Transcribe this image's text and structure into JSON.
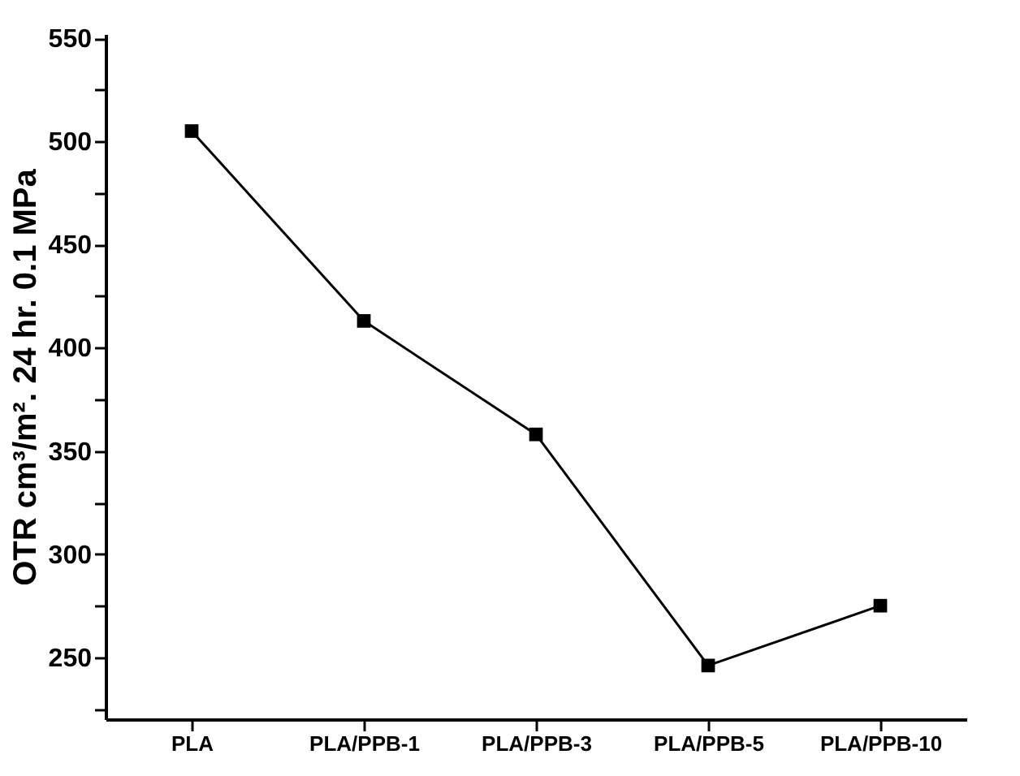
{
  "chart_data": {
    "type": "line",
    "ylabel": "OTR cm³/m². 24 hr. 0.1 MPa",
    "categories": [
      "PLA",
      "PLA/PPB-1",
      "PLA/PPB-3",
      "PLA/PPB-5",
      "PLA/PPB-10"
    ],
    "series": [
      {
        "color": "#000000",
        "values": [
          505,
          413,
          358,
          246,
          275
        ]
      }
    ],
    "ylim": [
      220,
      552
    ],
    "yticks": [
      {
        "value": 225,
        "label": null
      },
      250,
      {
        "value": 275,
        "label": null
      },
      300,
      {
        "value": 325,
        "label": null
      },
      350,
      {
        "value": 375,
        "label": null
      },
      400,
      {
        "value": 425,
        "label": null
      },
      450,
      {
        "value": 475,
        "label": null
      },
      500,
      {
        "value": 525,
        "label": null
      },
      550
    ],
    "marker": "square",
    "line_style": "solid",
    "grid": false
  }
}
